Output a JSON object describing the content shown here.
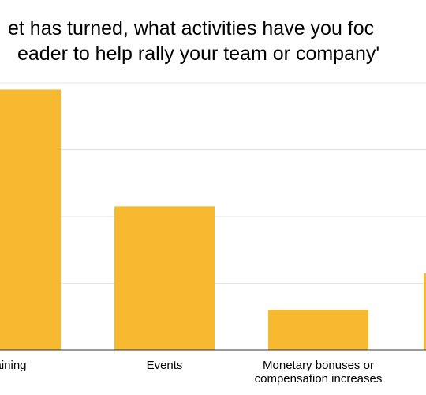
{
  "chart_data": {
    "type": "bar",
    "title_lines": [
      "et has turned, what activities have you foc",
      "eader to help rally your team or company'"
    ],
    "categories": [
      [
        "aining"
      ],
      [
        "Events"
      ],
      [
        "Monetary bonuses or",
        "compensation increases"
      ],
      [
        ""
      ]
    ],
    "values": [
      78,
      43,
      12,
      23
    ],
    "ylim": [
      0,
      80
    ],
    "grid": true,
    "bar_color": "#F7B92F",
    "grid_color": "#E3E3E3",
    "axis_color": "#333333"
  }
}
